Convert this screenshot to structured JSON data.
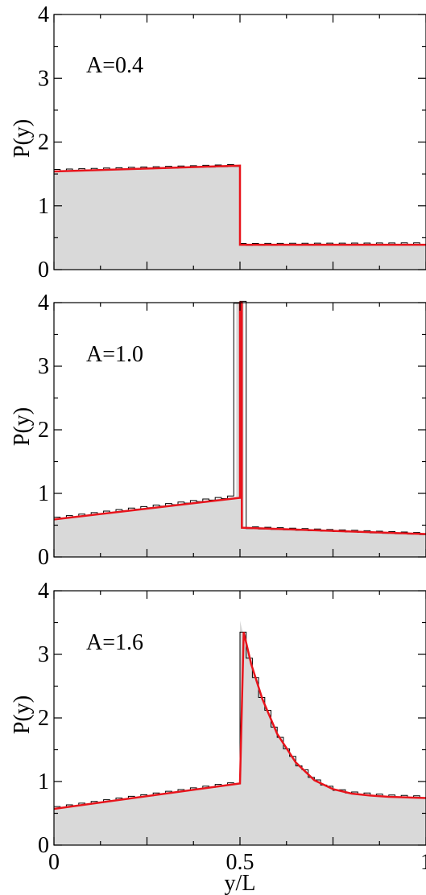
{
  "chart_data": [
    {
      "type": "area",
      "panel_label": "A=0.4",
      "ylabel": "P(y)",
      "xlabel": "",
      "xlim": [
        0,
        1
      ],
      "ylim": [
        0,
        4
      ],
      "y_ticks": [
        "0",
        "1",
        "2",
        "3",
        "4"
      ],
      "x_ticks": [],
      "grid": false,
      "colors": {
        "histogram_fill": "#d9d9d9",
        "histogram_edge": "#000000",
        "fit_line": "#e8141c"
      },
      "series": [
        {
          "kind": "histogram",
          "x": [
            0,
            0.5,
            0.5,
            1.0
          ],
          "y": [
            1.55,
            1.63,
            0.39,
            0.4
          ]
        },
        {
          "kind": "line",
          "x": [
            0,
            0.5,
            0.5,
            1.0
          ],
          "y": [
            1.54,
            1.63,
            0.39,
            0.39
          ]
        }
      ]
    },
    {
      "type": "area",
      "panel_label": "A=1.0",
      "ylabel": "P(y)",
      "xlabel": "",
      "xlim": [
        0,
        1
      ],
      "ylim": [
        0,
        4
      ],
      "y_ticks": [
        "0",
        "1",
        "2",
        "3",
        "4"
      ],
      "x_ticks": [],
      "grid": false,
      "colors": {
        "histogram_fill": "#d9d9d9",
        "histogram_edge": "#000000",
        "fit_line": "#e8141c"
      },
      "series": [
        {
          "kind": "histogram",
          "x": [
            0,
            0.49,
            0.49,
            0.5,
            0.5,
            0.51,
            0.51,
            1.0
          ],
          "y": [
            0.6,
            0.95,
            4.0,
            4.0,
            4.0,
            4.0,
            0.46,
            0.36
          ]
        },
        {
          "kind": "line",
          "x": [
            0,
            0.5,
            0.5,
            0.505,
            0.505,
            1.0
          ],
          "y": [
            0.59,
            0.93,
            4.0,
            4.0,
            0.46,
            0.36
          ]
        }
      ]
    },
    {
      "type": "area",
      "panel_label": "A=1.6",
      "ylabel": "P(y)",
      "xlabel": "y/L",
      "xlim": [
        0,
        1
      ],
      "ylim": [
        0,
        4
      ],
      "y_ticks": [
        "0",
        "1",
        "2",
        "3",
        "4"
      ],
      "x_ticks": [
        "0",
        "0.5",
        "1"
      ],
      "grid": false,
      "colors": {
        "histogram_fill": "#d9d9d9",
        "histogram_edge": "#000000",
        "fit_line": "#e8141c"
      },
      "series": [
        {
          "kind": "histogram",
          "x": [
            0,
            0.5,
            0.5,
            0.52,
            0.55,
            0.6,
            0.65,
            0.7,
            0.75,
            0.8,
            0.9,
            1.0
          ],
          "y": [
            0.58,
            0.98,
            3.53,
            3.05,
            2.45,
            1.75,
            1.3,
            1.03,
            0.88,
            0.82,
            0.77,
            0.75
          ]
        },
        {
          "kind": "line",
          "x": [
            0,
            0.5,
            0.5,
            0.51,
            0.53,
            0.56,
            0.6,
            0.65,
            0.7,
            0.75,
            0.8,
            0.85,
            0.9,
            0.95,
            1.0
          ],
          "y": [
            0.57,
            0.97,
            0.97,
            3.35,
            2.85,
            2.3,
            1.75,
            1.3,
            1.02,
            0.88,
            0.81,
            0.78,
            0.76,
            0.75,
            0.74
          ]
        }
      ]
    }
  ]
}
